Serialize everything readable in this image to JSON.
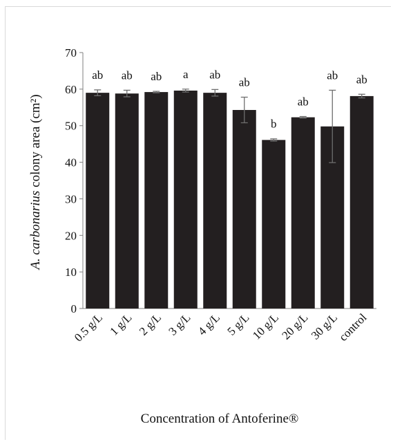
{
  "chart_data": {
    "type": "bar",
    "title": "",
    "xlabel": "Concentration of Antoferine®",
    "ylabel_italic": "A. carbonarius",
    "ylabel_rest": " colony area (cm²)",
    "ylim": [
      0,
      70
    ],
    "yticks": [
      "0",
      "10",
      "20",
      "30",
      "40",
      "50",
      "60",
      "70"
    ],
    "grid": false,
    "categories": [
      "0.5 g/L",
      "1 g/L",
      "2 g/L",
      "3 g/L",
      "4 g/L",
      "5 g/L",
      "10 g/L",
      "20 g/L",
      "30 g/L",
      "control"
    ],
    "values": [
      59.0,
      58.8,
      59.2,
      59.6,
      59.0,
      54.3,
      46.1,
      52.3,
      49.8,
      58.1
    ],
    "errors": [
      0.8,
      0.9,
      0.2,
      0.4,
      0.9,
      3.5,
      0.3,
      0.2,
      9.9,
      0.5
    ],
    "significance_labels": [
      "ab",
      "ab",
      "ab",
      "a",
      "ab",
      "ab",
      "b",
      "ab",
      "ab",
      "ab"
    ],
    "bar_color": "#231f20",
    "error_bar_color": "#6e6e6e"
  }
}
